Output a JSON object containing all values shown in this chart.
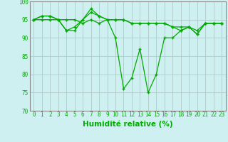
{
  "title": "",
  "xlabel": "Humidité relative (%)",
  "ylabel": "",
  "background_color": "#cff0f0",
  "plot_bg_color": "#cff0f0",
  "line_color": "#00aa00",
  "grid_color": "#b0c8c8",
  "spine_color": "#888888",
  "xlim": [
    -0.5,
    23.5
  ],
  "ylim": [
    70,
    100
  ],
  "yticks": [
    70,
    75,
    80,
    85,
    90,
    95,
    100
  ],
  "xticks": [
    0,
    1,
    2,
    3,
    4,
    5,
    6,
    7,
    8,
    9,
    10,
    11,
    12,
    13,
    14,
    15,
    16,
    17,
    18,
    19,
    20,
    21,
    22,
    23
  ],
  "xlabel_fontsize": 7.5,
  "tick_fontsize": 5.5,
  "series": [
    [
      95,
      96,
      96,
      95,
      92,
      93,
      95,
      98,
      96,
      95,
      90,
      76,
      79,
      87,
      75,
      80,
      90,
      90,
      92,
      93,
      91,
      94,
      94,
      94
    ],
    [
      95,
      96,
      96,
      95,
      92,
      92,
      95,
      97,
      96,
      95,
      95,
      95,
      94,
      94,
      94,
      94,
      94,
      93,
      92,
      93,
      91,
      94,
      94,
      94
    ],
    [
      95,
      95,
      95,
      95,
      95,
      95,
      94,
      95,
      94,
      95,
      95,
      95,
      94,
      94,
      94,
      94,
      94,
      93,
      93,
      93,
      92,
      94,
      94,
      94
    ]
  ]
}
